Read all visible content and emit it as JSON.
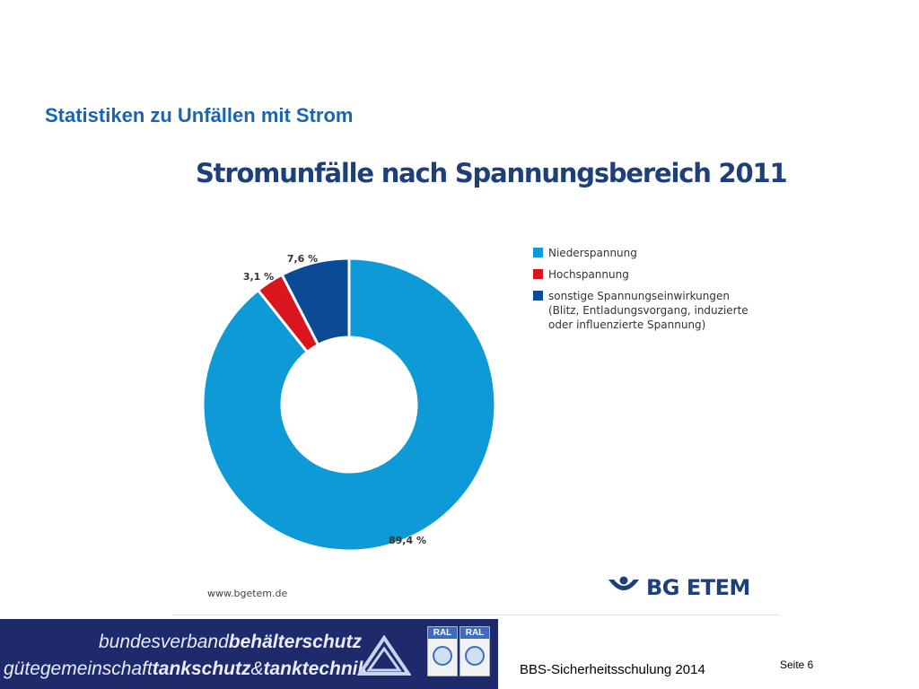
{
  "slide_title": "Statistiken zu Unfällen mit Strom",
  "chart_data": {
    "type": "pie",
    "title": "Stromunfälle nach Spannungsbereich 2011",
    "slices": [
      {
        "name": "Niederspannung",
        "value": 89.4,
        "label": "89,4 %",
        "color": "#0e9ad7"
      },
      {
        "name": "Hochspannung",
        "value": 3.1,
        "label": "3,1 %",
        "color": "#d9151e"
      },
      {
        "name": "sonstige Spannungseinwirkungen\n(Blitz, Entladungsvorgang, induzierte\noder influenzierte Spannung)",
        "value": 7.6,
        "label": "7,6 %",
        "color": "#0b4a94"
      }
    ],
    "legend_position": "right",
    "donut": true
  },
  "source": "www.bgetem.de",
  "logo": {
    "text": "BG ETEM",
    "color": "#1d3f7a"
  },
  "footer": {
    "banner_line1_light": "bundesverband",
    "banner_line1_bold": "behälterschutz",
    "banner_line2_light": "gütegemeinschaft",
    "banner_line2_bold": "tankschutz",
    "banner_line2_amp": "&",
    "banner_line2_bold2": "tanktechnik",
    "ral_badges": [
      "RAL",
      "RAL"
    ],
    "presentation": "BBS-Sicherheitsschulung 2014",
    "page": "Seite 6"
  },
  "colors": {
    "title_blue": "#1a64b4",
    "banner_navy": "#1e2a6a"
  }
}
